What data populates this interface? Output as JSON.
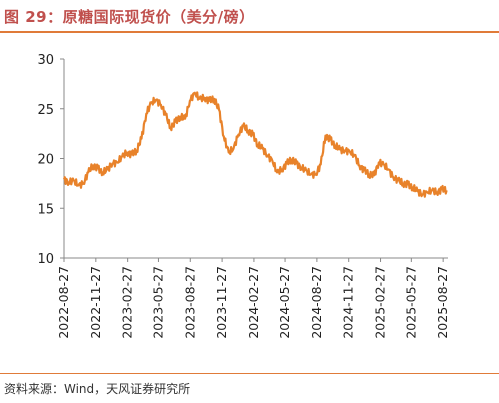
{
  "header": {
    "title": "图 29：原糖国际现货价（美分/磅）"
  },
  "footer": {
    "source": "资料来源：Wind，天风证券研究所"
  },
  "colors": {
    "accent": "#E07B39",
    "title": "#C0504D",
    "line": "#E8822A"
  },
  "chart_data": {
    "type": "line",
    "title": "图 29：原糖国际现货价（美分/磅）",
    "ylim": [
      10,
      30
    ],
    "yticks": [
      10,
      15,
      20,
      25,
      30
    ],
    "xlim": [
      "2022-08-27",
      "2025-09-10"
    ],
    "xticks": [
      "2022-08-27",
      "2022-11-27",
      "2023-02-27",
      "2023-05-27",
      "2023-08-27",
      "2023-11-27",
      "2024-02-27",
      "2024-05-27",
      "2024-08-27",
      "2024-11-27",
      "2025-02-27",
      "2025-05-27",
      "2025-08-27"
    ],
    "grid": false,
    "series": [
      {
        "name": "",
        "points": [
          [
            "2022-08-27",
            17.9
          ],
          [
            "2022-09-10",
            17.6
          ],
          [
            "2022-09-24",
            17.8
          ],
          [
            "2022-10-08",
            17.3
          ],
          [
            "2022-10-22",
            17.5
          ],
          [
            "2022-11-05",
            18.6
          ],
          [
            "2022-11-19",
            19.3
          ],
          [
            "2022-12-03",
            19.0
          ],
          [
            "2022-12-17",
            18.6
          ],
          [
            "2022-12-31",
            18.9
          ],
          [
            "2023-01-14",
            19.5
          ],
          [
            "2023-01-28",
            19.6
          ],
          [
            "2023-02-11",
            20.2
          ],
          [
            "2023-02-25",
            20.6
          ],
          [
            "2023-03-11",
            20.4
          ],
          [
            "2023-03-25",
            20.8
          ],
          [
            "2023-04-08",
            22.0
          ],
          [
            "2023-04-22",
            24.5
          ],
          [
            "2023-05-06",
            25.6
          ],
          [
            "2023-05-20",
            25.9
          ],
          [
            "2023-06-03",
            25.4
          ],
          [
            "2023-06-17",
            24.4
          ],
          [
            "2023-07-01",
            23.1
          ],
          [
            "2023-07-15",
            23.7
          ],
          [
            "2023-07-29",
            24.2
          ],
          [
            "2023-08-12",
            24.0
          ],
          [
            "2023-08-26",
            25.8
          ],
          [
            "2023-09-09",
            26.6
          ],
          [
            "2023-09-23",
            26.0
          ],
          [
            "2023-10-07",
            26.1
          ],
          [
            "2023-10-21",
            25.8
          ],
          [
            "2023-11-04",
            26.0
          ],
          [
            "2023-11-18",
            24.9
          ],
          [
            "2023-12-02",
            22.2
          ],
          [
            "2023-12-16",
            20.6
          ],
          [
            "2023-12-30",
            21.0
          ],
          [
            "2024-01-13",
            22.4
          ],
          [
            "2024-01-27",
            23.3
          ],
          [
            "2024-02-10",
            22.8
          ],
          [
            "2024-02-24",
            22.4
          ],
          [
            "2024-03-09",
            21.4
          ],
          [
            "2024-03-23",
            21.0
          ],
          [
            "2024-04-06",
            20.3
          ],
          [
            "2024-04-20",
            19.8
          ],
          [
            "2024-05-04",
            18.6
          ],
          [
            "2024-05-18",
            18.9
          ],
          [
            "2024-06-01",
            19.5
          ],
          [
            "2024-06-15",
            19.9
          ],
          [
            "2024-06-29",
            19.5
          ],
          [
            "2024-07-13",
            19.1
          ],
          [
            "2024-07-27",
            18.8
          ],
          [
            "2024-08-10",
            18.4
          ],
          [
            "2024-08-24",
            18.4
          ],
          [
            "2024-09-07",
            19.4
          ],
          [
            "2024-09-21",
            22.3
          ],
          [
            "2024-10-05",
            21.9
          ],
          [
            "2024-10-19",
            21.3
          ],
          [
            "2024-11-02",
            20.9
          ],
          [
            "2024-11-16",
            20.8
          ],
          [
            "2024-11-30",
            20.7
          ],
          [
            "2024-12-14",
            20.3
          ],
          [
            "2024-12-28",
            19.3
          ],
          [
            "2025-01-11",
            18.8
          ],
          [
            "2025-01-25",
            18.4
          ],
          [
            "2025-02-08",
            18.3
          ],
          [
            "2025-02-22",
            19.6
          ],
          [
            "2025-03-08",
            19.4
          ],
          [
            "2025-03-22",
            18.9
          ],
          [
            "2025-04-05",
            18.1
          ],
          [
            "2025-04-19",
            17.8
          ],
          [
            "2025-05-03",
            17.5
          ],
          [
            "2025-05-17",
            17.4
          ],
          [
            "2025-05-31",
            17.1
          ],
          [
            "2025-06-14",
            16.7
          ],
          [
            "2025-06-28",
            16.4
          ],
          [
            "2025-07-12",
            16.6
          ],
          [
            "2025-07-26",
            16.8
          ],
          [
            "2025-08-09",
            16.6
          ],
          [
            "2025-08-23",
            16.9
          ],
          [
            "2025-09-06",
            16.8
          ]
        ]
      }
    ]
  }
}
